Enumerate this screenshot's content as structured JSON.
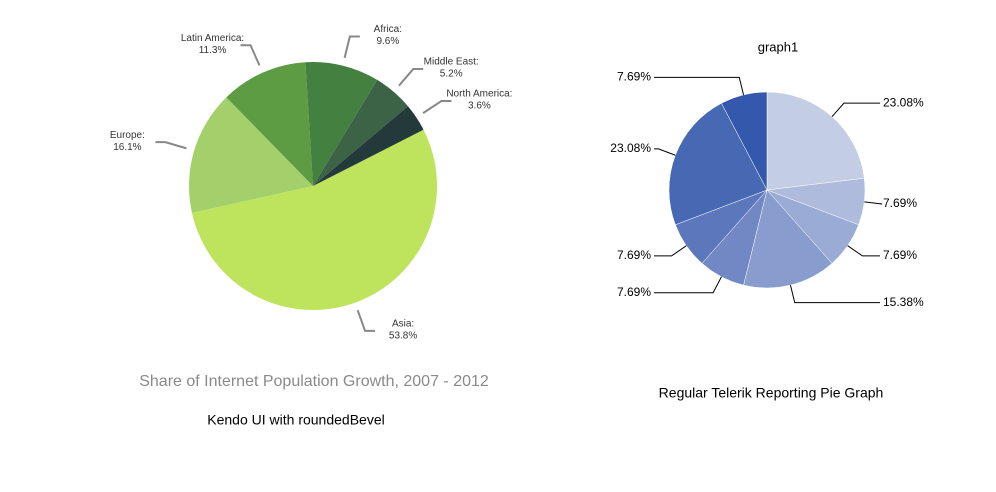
{
  "chart_data": [
    {
      "type": "pie",
      "title": "Share of Internet Population Growth, 2007 - 2012",
      "caption": "Kendo UI with roundedBevel",
      "categories": [
        "Asia:",
        "Europe:",
        "Latin America:",
        "Africa:",
        "Middle East:",
        "North America:"
      ],
      "values": [
        53.8,
        16.1,
        11.3,
        9.6,
        5.2,
        3.6
      ],
      "value_labels": [
        "53.8%",
        "16.1%",
        "11.3%",
        "9.6%",
        "5.2%",
        "3.6%"
      ],
      "colors": [
        "#bde45c",
        "#a3d06a",
        "#5e9c44",
        "#44803f",
        "#3c6346",
        "#243a3a"
      ]
    },
    {
      "type": "pie",
      "title": "graph1",
      "caption": "Regular Telerik Reporting Pie Graph",
      "values": [
        23.08,
        7.69,
        7.69,
        15.38,
        7.69,
        7.69,
        23.08,
        7.69
      ],
      "value_labels": [
        "23.08%",
        "7.69%",
        "7.69%",
        "15.38%",
        "7.69%",
        "7.69%",
        "23.08%",
        "7.69%"
      ],
      "colors": [
        "#c3cde3",
        "#aebbdc",
        "#9aabd5",
        "#889ccd",
        "#7288c4",
        "#5d77bc",
        "#4768b2",
        "#3458ab"
      ]
    }
  ]
}
